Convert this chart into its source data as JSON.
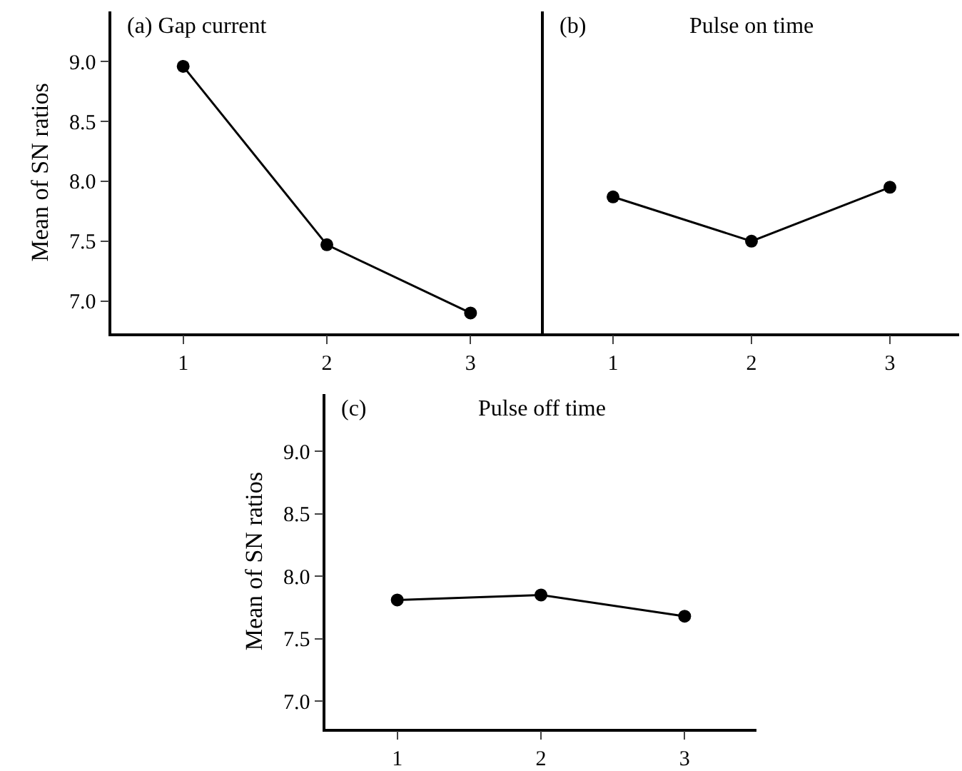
{
  "chart_data": [
    {
      "type": "line",
      "title": "(a) Gap current",
      "ylabel": "Mean of SN ratios",
      "x": [
        1,
        2,
        3
      ],
      "series": [
        {
          "color": "#000000",
          "values": [
            8.96,
            7.47,
            6.9
          ]
        }
      ],
      "xlim": [
        0.5,
        3.5
      ],
      "xticks": [
        1,
        2,
        3
      ],
      "ylim": [
        6.73,
        9.42
      ],
      "yticks": [
        {
          "value": 7,
          "label": "7.0"
        },
        {
          "value": 7.5,
          "label": "7.5"
        },
        {
          "value": 8,
          "label": "8.0"
        },
        {
          "value": 8.5,
          "label": "8.5"
        },
        {
          "value": 9,
          "label": "9.0"
        }
      ],
      "marker": "circle",
      "line_style": "solid"
    },
    {
      "type": "line",
      "title": "Pulse on time",
      "annotations": [
        "(b)"
      ],
      "x": [
        1,
        2,
        3
      ],
      "series": [
        {
          "color": "#000000",
          "values": [
            7.87,
            7.5,
            7.95
          ]
        }
      ],
      "xlim": [
        0.5,
        3.5
      ],
      "xticks": [
        1,
        2,
        3
      ],
      "ylim": [
        6.73,
        9.42
      ],
      "tick_labels": "x",
      "marker": "circle",
      "line_style": "solid"
    },
    {
      "type": "line",
      "title": "Pulse off time",
      "annotations": [
        "(c)"
      ],
      "ylabel": "Mean of SN ratios",
      "x": [
        1,
        2,
        3
      ],
      "series": [
        {
          "color": "#000000",
          "values": [
            7.81,
            7.85,
            7.68
          ]
        }
      ],
      "xlim": [
        0.5,
        3.5
      ],
      "xticks": [
        1,
        2,
        3
      ],
      "ylim": [
        6.78,
        9.46
      ],
      "yticks": [
        {
          "value": 7,
          "label": "7.0"
        },
        {
          "value": 7.5,
          "label": "7.5"
        },
        {
          "value": 8,
          "label": "8.0"
        },
        {
          "value": 8.5,
          "label": "8.5"
        },
        {
          "value": 9,
          "label": "9.0"
        }
      ],
      "marker": "circle",
      "line_style": "solid"
    }
  ]
}
